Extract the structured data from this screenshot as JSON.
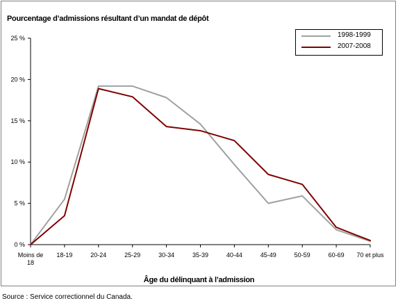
{
  "chart_data": {
    "type": "line",
    "title": "",
    "ylabel": "Pourcentage d’admissions résultant d’un mandat de dépôt",
    "xlabel": "Âge du délinquant à l’admission",
    "categories": [
      "Moins de 18",
      "18-19",
      "20-24",
      "25-29",
      "30-34",
      "35-39",
      "40-44",
      "45-49",
      "50-59",
      "60-69",
      "70 et plus"
    ],
    "category_display": [
      [
        "Moins de",
        "18"
      ],
      [
        "18-19"
      ],
      [
        "20-24"
      ],
      [
        "25-29"
      ],
      [
        "30-34"
      ],
      [
        "35-39"
      ],
      [
        "40-44"
      ],
      [
        "45-49"
      ],
      [
        "50-59"
      ],
      [
        "60-69"
      ],
      [
        "70 et plus"
      ]
    ],
    "yticks": [
      0,
      5,
      10,
      15,
      20,
      25
    ],
    "ytick_labels": [
      "0 %",
      "5 %",
      "10 %",
      "15 %",
      "20 %",
      "25 %"
    ],
    "ylim": [
      0,
      25
    ],
    "grid": false,
    "legend_position": "top-right",
    "series": [
      {
        "name": "1998-1999",
        "color": "#a0a0a0",
        "values": [
          0,
          5.5,
          19.2,
          19.2,
          17.8,
          14.6,
          9.7,
          5.0,
          5.9,
          1.8,
          0.4
        ]
      },
      {
        "name": "2007-2008",
        "color": "#800000",
        "values": [
          0,
          3.5,
          18.9,
          17.9,
          14.3,
          13.8,
          12.6,
          8.5,
          7.3,
          2.1,
          0.5
        ]
      }
    ]
  },
  "source": "Source : Service correctionnel du Canada."
}
